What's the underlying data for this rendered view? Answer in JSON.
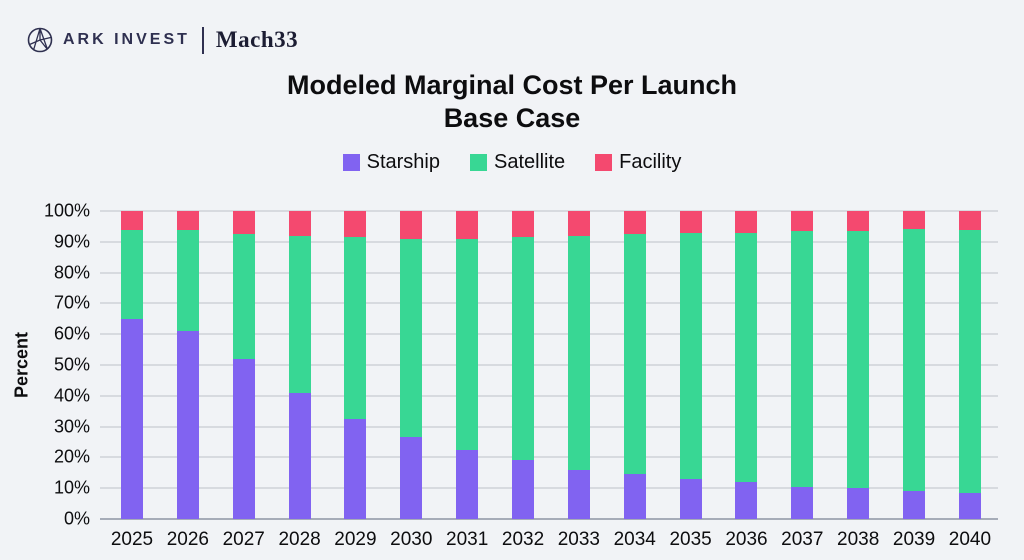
{
  "header": {
    "brand_primary": "ARK INVEST",
    "brand_secondary": "Mach33"
  },
  "chart_data": {
    "type": "bar",
    "stacked": true,
    "title": "Modeled Marginal Cost Per Launch",
    "subtitle": "Base Case",
    "ylabel": "Percent",
    "xlabel": "",
    "categories": [
      "2025",
      "2026",
      "2027",
      "2028",
      "2029",
      "2030",
      "2031",
      "2032",
      "2033",
      "2034",
      "2035",
      "2036",
      "2037",
      "2038",
      "2039",
      "2040"
    ],
    "series": [
      {
        "name": "Starship",
        "color": "#8163F1",
        "values": [
          65,
          61,
          52,
          41,
          32.5,
          26.5,
          22.5,
          19,
          16,
          14.5,
          13,
          12,
          10.5,
          10,
          9,
          8.5
        ]
      },
      {
        "name": "Satellite",
        "color": "#38D794",
        "values": [
          29,
          33,
          40.5,
          51,
          59,
          64.5,
          68.5,
          72.5,
          76,
          78,
          80,
          81,
          83,
          83.5,
          85,
          85.5
        ]
      },
      {
        "name": "Facility",
        "color": "#F4496F",
        "values": [
          6,
          6,
          7.5,
          8,
          8.5,
          9,
          9,
          8.5,
          8,
          7.5,
          7,
          7,
          6.5,
          6.5,
          6,
          6
        ]
      }
    ],
    "ylim": [
      0,
      100
    ],
    "yticks": [
      "0%",
      "10%",
      "20%",
      "30%",
      "40%",
      "50%",
      "60%",
      "70%",
      "80%",
      "90%",
      "100%"
    ],
    "grid": true,
    "legend_position": "top",
    "units": "percent of total"
  },
  "colors": {
    "background": "#F1F3F6",
    "gridline": "#D7DADF",
    "axis_line": "#A6ACB8",
    "text": "#0D0D0F",
    "brand": "#2F3050"
  }
}
